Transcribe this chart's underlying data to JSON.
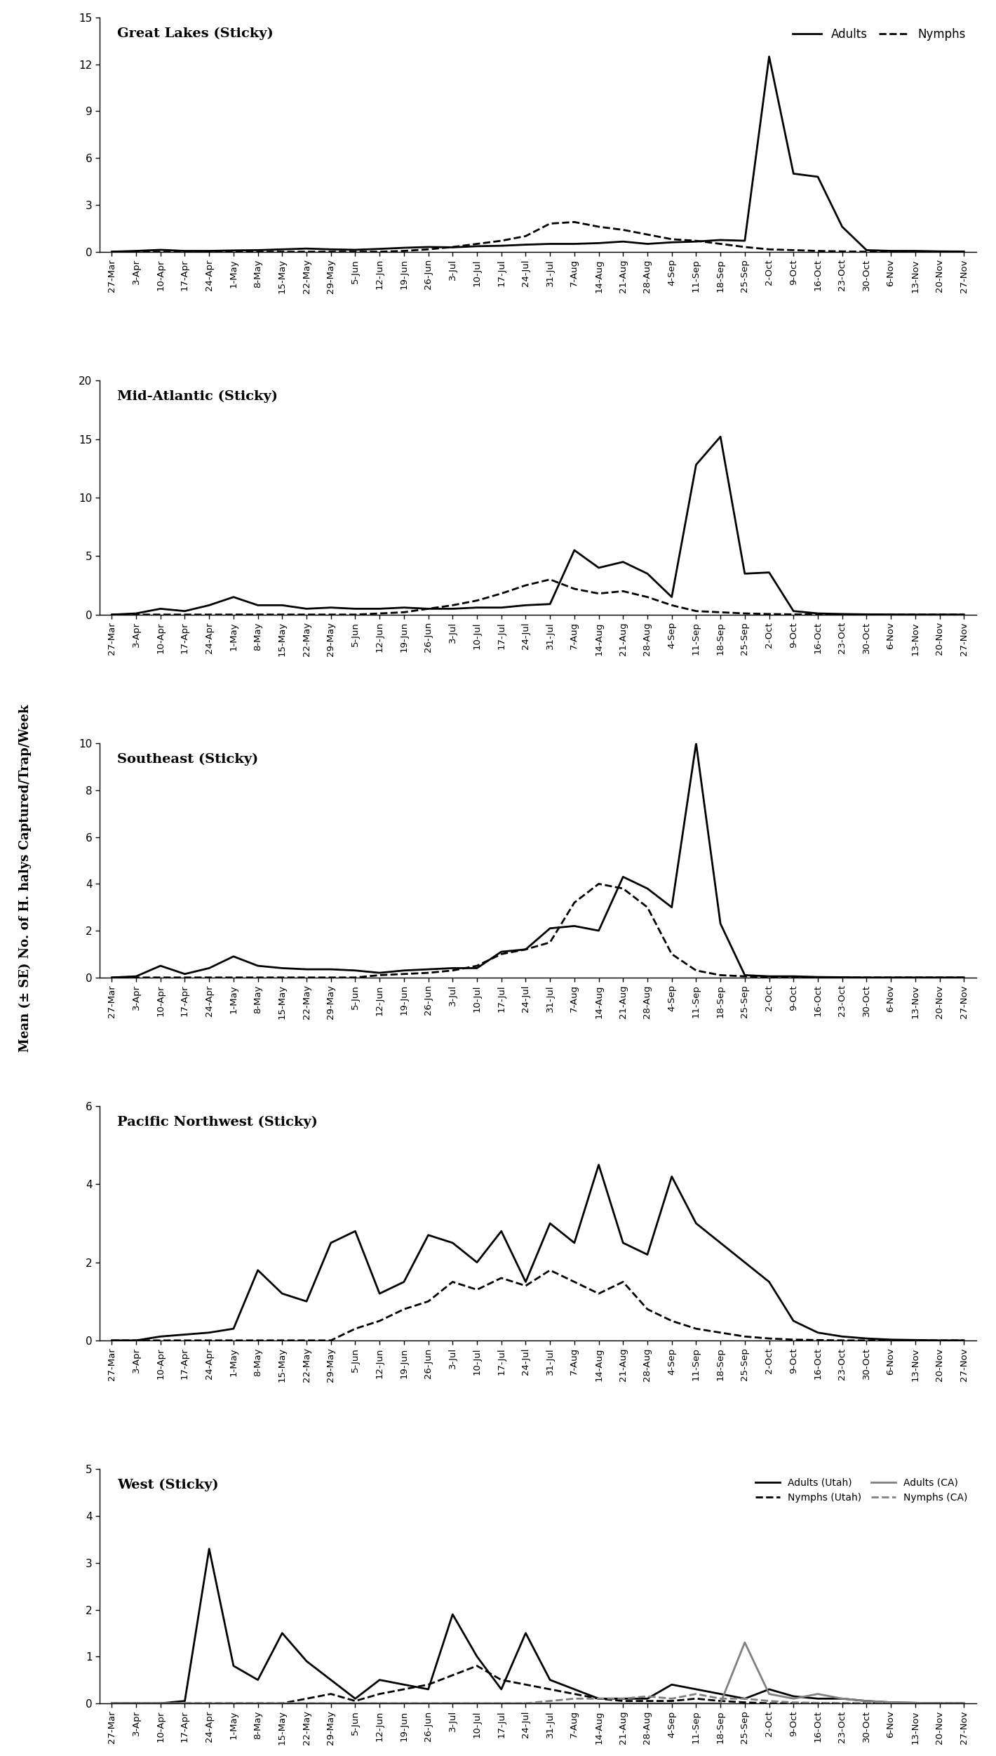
{
  "x_labels": [
    "27-Mar",
    "3-Apr",
    "10-Apr",
    "17-Apr",
    "24-Apr",
    "1-May",
    "8-May",
    "15-May",
    "22-May",
    "29-May",
    "5-Jun",
    "12-Jun",
    "19-Jun",
    "26-Jun",
    "3-Jul",
    "10-Jul",
    "17-Jul",
    "24-Jul",
    "31-Jul",
    "7-Aug",
    "14-Aug",
    "21-Aug",
    "28-Aug",
    "4-Sep",
    "11-Sep",
    "18-Sep",
    "25-Sep",
    "2-Oct",
    "9-Oct",
    "16-Oct",
    "23-Oct",
    "30-Oct",
    "6-Nov",
    "13-Nov",
    "20-Nov",
    "27-Nov"
  ],
  "great_lakes_adults": [
    0.0,
    0.05,
    0.12,
    0.05,
    0.05,
    0.08,
    0.1,
    0.15,
    0.2,
    0.15,
    0.12,
    0.18,
    0.25,
    0.3,
    0.28,
    0.35,
    0.38,
    0.45,
    0.5,
    0.5,
    0.55,
    0.65,
    0.5,
    0.6,
    0.65,
    0.75,
    0.7,
    12.5,
    5.0,
    4.8,
    1.6,
    0.1,
    0.05,
    0.05,
    0.02,
    0.01
  ],
  "great_lakes_nymphs": [
    0.0,
    0.0,
    0.0,
    0.0,
    0.0,
    0.0,
    0.0,
    0.0,
    0.0,
    0.0,
    0.0,
    0.0,
    0.05,
    0.15,
    0.3,
    0.5,
    0.7,
    1.0,
    1.8,
    1.9,
    1.6,
    1.4,
    1.1,
    0.8,
    0.7,
    0.5,
    0.3,
    0.15,
    0.1,
    0.05,
    0.02,
    0.0,
    0.0,
    0.0,
    0.0,
    0.0
  ],
  "mid_atlantic_adults": [
    0.0,
    0.1,
    0.5,
    0.3,
    0.8,
    1.5,
    0.8,
    0.8,
    0.5,
    0.6,
    0.5,
    0.5,
    0.6,
    0.5,
    0.5,
    0.6,
    0.6,
    0.8,
    0.9,
    5.5,
    4.0,
    4.5,
    3.5,
    1.5,
    12.8,
    15.2,
    3.5,
    3.6,
    0.3,
    0.1,
    0.05,
    0.02,
    0.01,
    0.0,
    0.0,
    0.0
  ],
  "mid_atlantic_nymphs": [
    0.0,
    0.0,
    0.0,
    0.0,
    0.0,
    0.0,
    0.0,
    0.0,
    0.0,
    0.0,
    0.0,
    0.1,
    0.2,
    0.5,
    0.8,
    1.2,
    1.8,
    2.5,
    3.0,
    2.2,
    1.8,
    2.0,
    1.5,
    0.8,
    0.3,
    0.2,
    0.1,
    0.05,
    0.02,
    0.01,
    0.0,
    0.0,
    0.0,
    0.0,
    0.0,
    0.0
  ],
  "southeast_adults": [
    0.0,
    0.05,
    0.5,
    0.15,
    0.4,
    0.9,
    0.5,
    0.4,
    0.35,
    0.35,
    0.3,
    0.2,
    0.3,
    0.35,
    0.4,
    0.4,
    1.1,
    1.2,
    2.1,
    2.2,
    2.0,
    4.3,
    3.8,
    3.0,
    10.0,
    2.3,
    0.1,
    0.05,
    0.05,
    0.02,
    0.01,
    0.0,
    0.0,
    0.0,
    0.0,
    0.0
  ],
  "southeast_nymphs": [
    0.0,
    0.0,
    0.0,
    0.0,
    0.0,
    0.0,
    0.0,
    0.0,
    0.0,
    0.0,
    0.0,
    0.1,
    0.15,
    0.2,
    0.3,
    0.5,
    1.0,
    1.2,
    1.5,
    3.2,
    4.0,
    3.8,
    3.0,
    1.0,
    0.3,
    0.1,
    0.05,
    0.02,
    0.01,
    0.0,
    0.0,
    0.0,
    0.0,
    0.0,
    0.0,
    0.0
  ],
  "pac_nw_adults": [
    0.0,
    0.0,
    0.1,
    0.15,
    0.2,
    0.3,
    1.8,
    1.2,
    1.0,
    2.5,
    2.8,
    1.2,
    1.5,
    2.7,
    2.5,
    2.0,
    2.8,
    1.5,
    3.0,
    2.5,
    4.5,
    2.5,
    2.2,
    4.2,
    3.0,
    2.5,
    2.0,
    1.5,
    0.5,
    0.2,
    0.1,
    0.05,
    0.02,
    0.01,
    0.0,
    0.0
  ],
  "pac_nw_nymphs": [
    0.0,
    0.0,
    0.0,
    0.0,
    0.0,
    0.0,
    0.0,
    0.0,
    0.0,
    0.0,
    0.3,
    0.5,
    0.8,
    1.0,
    1.5,
    1.3,
    1.6,
    1.4,
    1.8,
    1.5,
    1.2,
    1.5,
    0.8,
    0.5,
    0.3,
    0.2,
    0.1,
    0.05,
    0.02,
    0.01,
    0.0,
    0.0,
    0.0,
    0.0,
    0.0,
    0.0
  ],
  "west_adults_utah": [
    0.0,
    0.0,
    0.0,
    0.05,
    3.3,
    0.8,
    0.5,
    1.5,
    0.9,
    0.5,
    0.1,
    0.5,
    0.4,
    0.3,
    1.9,
    1.0,
    0.3,
    1.5,
    0.5,
    0.3,
    0.1,
    0.1,
    0.1,
    0.4,
    0.3,
    0.2,
    0.1,
    0.3,
    0.15,
    0.1,
    0.1,
    0.05,
    0.02,
    0.01,
    0.0,
    0.0
  ],
  "west_nymphs_utah": [
    0.0,
    0.0,
    0.0,
    0.0,
    0.0,
    0.0,
    0.0,
    0.0,
    0.1,
    0.2,
    0.05,
    0.2,
    0.3,
    0.4,
    0.6,
    0.8,
    0.5,
    0.4,
    0.3,
    0.2,
    0.1,
    0.05,
    0.05,
    0.05,
    0.1,
    0.05,
    0.02,
    0.0,
    0.0,
    0.0,
    0.0,
    0.0,
    0.0,
    0.0,
    0.0,
    0.0
  ],
  "west_adults_ca": [
    0.0,
    0.0,
    0.0,
    0.0,
    0.0,
    0.0,
    0.0,
    0.0,
    0.0,
    0.0,
    0.0,
    0.0,
    0.0,
    0.0,
    0.0,
    0.0,
    0.0,
    0.0,
    0.0,
    0.0,
    0.0,
    0.0,
    0.0,
    0.0,
    0.0,
    0.0,
    1.3,
    0.2,
    0.1,
    0.2,
    0.1,
    0.05,
    0.02,
    0.01,
    0.0,
    0.0
  ],
  "west_nymphs_ca": [
    0.0,
    0.0,
    0.0,
    0.0,
    0.0,
    0.0,
    0.0,
    0.0,
    0.0,
    0.0,
    0.0,
    0.0,
    0.0,
    0.0,
    0.0,
    0.0,
    0.0,
    0.0,
    0.05,
    0.1,
    0.1,
    0.1,
    0.15,
    0.1,
    0.2,
    0.1,
    0.1,
    0.05,
    0.02,
    0.01,
    0.0,
    0.0,
    0.0,
    0.0,
    0.0,
    0.0
  ],
  "panel_titles": [
    "Great Lakes (Sticky)",
    "Mid-Atlantic (Sticky)",
    "Southeast (Sticky)",
    "Pacific Northwest (Sticky)",
    "West (Sticky)"
  ],
  "ylims": [
    15,
    20,
    10,
    6,
    5
  ],
  "yticks": [
    [
      0,
      3,
      6,
      9,
      12,
      15
    ],
    [
      0,
      5,
      10,
      15,
      20
    ],
    [
      0,
      2,
      4,
      6,
      8,
      10
    ],
    [
      0,
      2,
      4,
      6
    ],
    [
      0,
      1,
      2,
      3,
      4,
      5
    ]
  ],
  "ylabel": "Mean (± SE) No. of H. halys Captured/Trap/Week",
  "bg_color": "#ffffff"
}
